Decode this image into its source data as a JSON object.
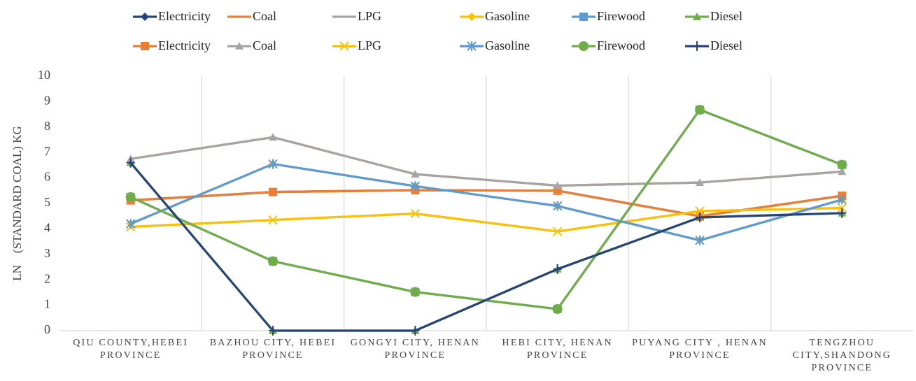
{
  "chart_data": {
    "type": "line",
    "y_label": "LN　(STANDARD COAL) KG",
    "categories": [
      "QIU COUNTY,HEBEI PROVINCE",
      "BAZHOU CITY, HEBEI PROVINCE",
      "GONGYI CITY, HENAN PROVINCE",
      "HEBI CITY, HENAN PROVINCE",
      "PUYANG CITY , HENAN PROVINCE",
      "TENGZHOU CITY,SHANDONG PROVINCE"
    ],
    "ylim": [
      0,
      10
    ],
    "yticks": [
      0,
      1,
      2,
      3,
      4,
      5,
      6,
      7,
      8,
      9,
      10
    ],
    "grid": "vertical",
    "series": [
      {
        "name": "Electricity",
        "color": "#264478",
        "marker": "diamond",
        "values": [
          5.12,
          5.45,
          5.52,
          5.5,
          4.5,
          5.3
        ]
      },
      {
        "name": "Coal",
        "color": "#ED7D31",
        "marker": "none",
        "values": [
          6.75,
          7.6,
          6.15,
          5.7,
          5.82,
          6.25
        ]
      },
      {
        "name": "LPG",
        "color": "#A5A5A5",
        "marker": "none",
        "values": [
          4.08,
          4.35,
          4.6,
          3.9,
          4.7,
          4.82
        ]
      },
      {
        "name": "Gasoline",
        "color": "#FFC000",
        "marker": "diamond",
        "values": [
          4.2,
          6.55,
          5.68,
          4.9,
          3.55,
          5.15
        ]
      },
      {
        "name": "Firewood",
        "color": "#5B9BD5",
        "marker": "square",
        "values": [
          5.25,
          2.73,
          1.52,
          0.85,
          8.68,
          6.52
        ]
      },
      {
        "name": "Diesel",
        "color": "#70AD47",
        "marker": "triangle",
        "values": [
          6.6,
          0,
          0,
          2.42,
          4.45,
          4.62
        ]
      },
      {
        "name": "Electricity",
        "color": "#ED7D31",
        "marker": "square",
        "values": [
          5.12,
          5.45,
          5.52,
          5.5,
          4.5,
          5.3
        ]
      },
      {
        "name": "Coal",
        "color": "#A5A5A5",
        "marker": "triangle",
        "values": [
          6.75,
          7.6,
          6.15,
          5.7,
          5.82,
          6.25
        ]
      },
      {
        "name": "LPG",
        "color": "#FFC000",
        "marker": "x",
        "values": [
          4.08,
          4.35,
          4.6,
          3.9,
          4.7,
          4.82
        ]
      },
      {
        "name": "Gasoline",
        "color": "#5B9BD5",
        "marker": "asterisk",
        "values": [
          4.2,
          6.55,
          5.68,
          4.9,
          3.55,
          5.15
        ]
      },
      {
        "name": "Firewood",
        "color": "#70AD47",
        "marker": "circle",
        "values": [
          5.25,
          2.73,
          1.52,
          0.85,
          8.68,
          6.52
        ]
      },
      {
        "name": "Diesel",
        "color": "#264478",
        "marker": "plus",
        "values": [
          6.6,
          0,
          0,
          2.42,
          4.45,
          4.62
        ]
      }
    ]
  }
}
